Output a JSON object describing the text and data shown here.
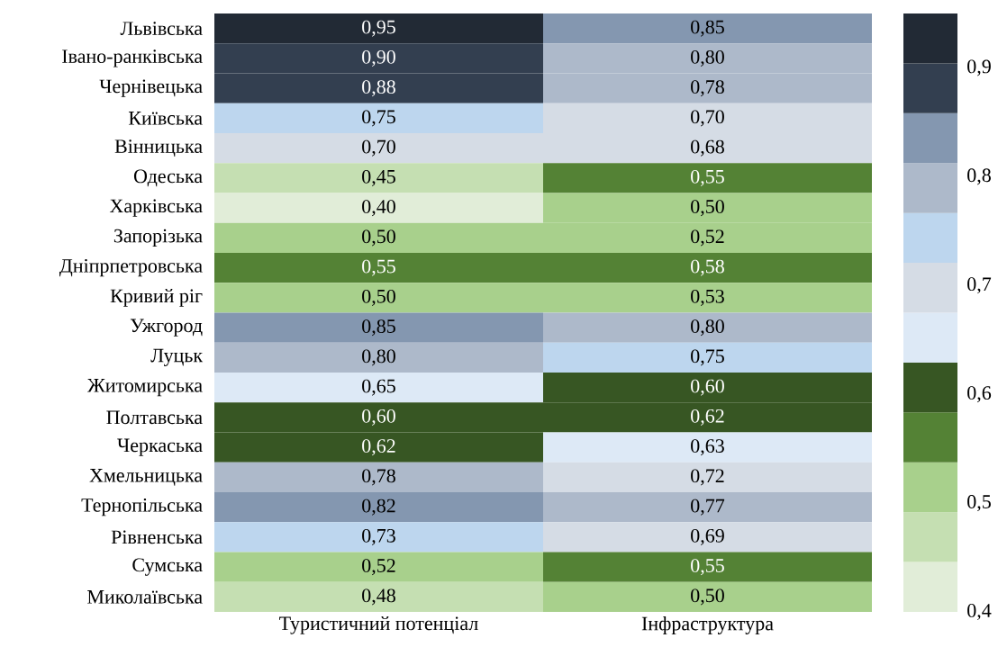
{
  "chart_data": {
    "type": "heatmap",
    "categories": [
      "Туристичний потенціал",
      "Інфраструктура"
    ],
    "y_categories": [
      "Львівська",
      "Івано-ранківська",
      "Чернівецька",
      "Київська",
      "Вінницька",
      "Одеська",
      "Харківська",
      "Запорізька",
      "Дніпрпетровська",
      "Кривий ріг",
      "Ужгород",
      "Луцьк",
      "Житомирська",
      "Полтавська",
      "Черкаська",
      "Хмельницька",
      "Тернопільська",
      "Рівненська",
      "Сумська",
      "Миколаївська"
    ],
    "cells": [
      [
        0.95,
        0.85
      ],
      [
        0.9,
        0.8
      ],
      [
        0.88,
        0.78
      ],
      [
        0.75,
        0.7
      ],
      [
        0.7,
        0.68
      ],
      [
        0.45,
        0.55
      ],
      [
        0.4,
        0.5
      ],
      [
        0.5,
        0.52
      ],
      [
        0.55,
        0.58
      ],
      [
        0.5,
        0.53
      ],
      [
        0.85,
        0.8
      ],
      [
        0.8,
        0.75
      ],
      [
        0.65,
        0.6
      ],
      [
        0.6,
        0.62
      ],
      [
        0.62,
        0.63
      ],
      [
        0.78,
        0.72
      ],
      [
        0.82,
        0.77
      ],
      [
        0.73,
        0.69
      ],
      [
        0.52,
        0.55
      ],
      [
        0.48,
        0.5
      ]
    ],
    "cell_labels": [
      [
        "0,95",
        "0,85"
      ],
      [
        "0,90",
        "0,80"
      ],
      [
        "0,88",
        "0,78"
      ],
      [
        "0,75",
        "0,70"
      ],
      [
        "0,70",
        "0,68"
      ],
      [
        "0,45",
        "0,55"
      ],
      [
        "0,40",
        "0,50"
      ],
      [
        "0,50",
        "0,52"
      ],
      [
        "0,55",
        "0,58"
      ],
      [
        "0,50",
        "0,53"
      ],
      [
        "0,85",
        "0,80"
      ],
      [
        "0,80",
        "0,75"
      ],
      [
        "0,65",
        "0,60"
      ],
      [
        "0,60",
        "0,62"
      ],
      [
        "0,62",
        "0,63"
      ],
      [
        "0,78",
        "0,72"
      ],
      [
        "0,82",
        "0,77"
      ],
      [
        "0,73",
        "0,69"
      ],
      [
        "0,52",
        "0,55"
      ],
      [
        "0,48",
        "0,50"
      ]
    ],
    "clim": [
      0.4,
      0.95
    ],
    "cticks": [
      {
        "value": 0.4,
        "label": "0,4"
      },
      {
        "value": 0.5,
        "label": "0,5"
      },
      {
        "value": 0.6,
        "label": "0,6"
      },
      {
        "value": 0.7,
        "label": "0,7"
      },
      {
        "value": 0.8,
        "label": "0,8"
      },
      {
        "value": 0.9,
        "label": "0,9"
      }
    ]
  }
}
